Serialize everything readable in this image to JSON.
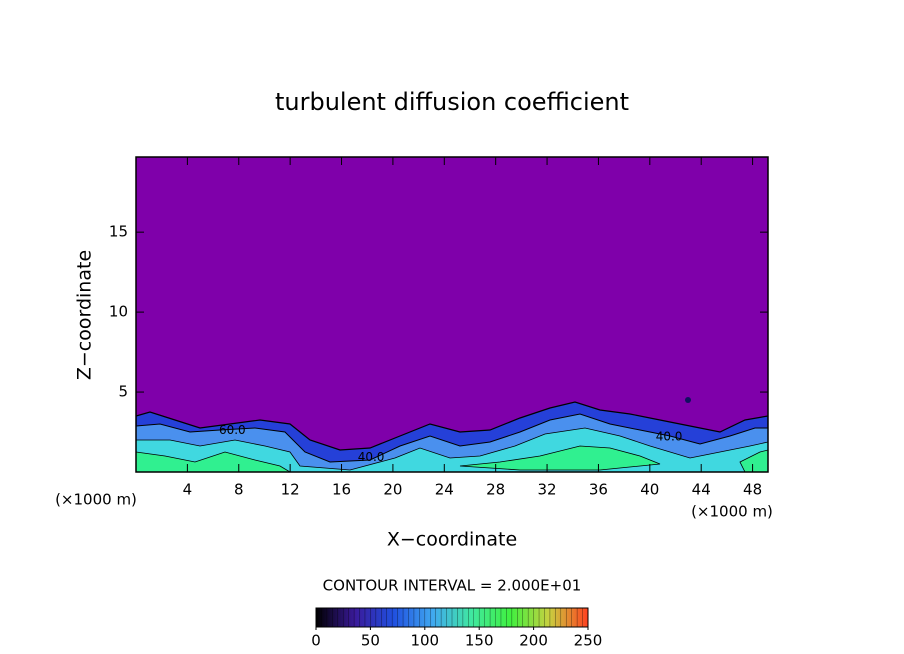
{
  "chart_data": {
    "type": "contour",
    "title": "turbulent diffusion coefficient",
    "x_label": "X−coordinate",
    "y_label": "Z−coordinate",
    "x_unit_label": "(×1000 m)",
    "xlim": [
      0,
      49.2
    ],
    "xticks": [
      4,
      8,
      12,
      16,
      20,
      24,
      28,
      32,
      36,
      40,
      44,
      48
    ],
    "ylim": [
      0,
      19.7
    ],
    "yticks": [
      5,
      10,
      15
    ],
    "field_color": "#7f00aa",
    "contour_interval_label": "CONTOUR INTERVAL = 2.000E+01",
    "colorbar_lim": [
      0,
      250
    ],
    "colorbar_ticks": [
      0,
      50,
      100,
      150,
      200,
      250
    ],
    "colormap": [
      "#000000",
      "#3a1a9a",
      "#2050e0",
      "#40a8f0",
      "#40e8a0",
      "#40f040",
      "#c8d040",
      "#ff4020"
    ],
    "annotations": [
      {
        "text": "40.0",
        "x": 41.5,
        "y": 2.2
      },
      {
        "text": "60.0",
        "x": 7.5,
        "y": 2.6
      },
      {
        "text": "40.0",
        "x": 18.3,
        "y": 0.9
      }
    ]
  }
}
